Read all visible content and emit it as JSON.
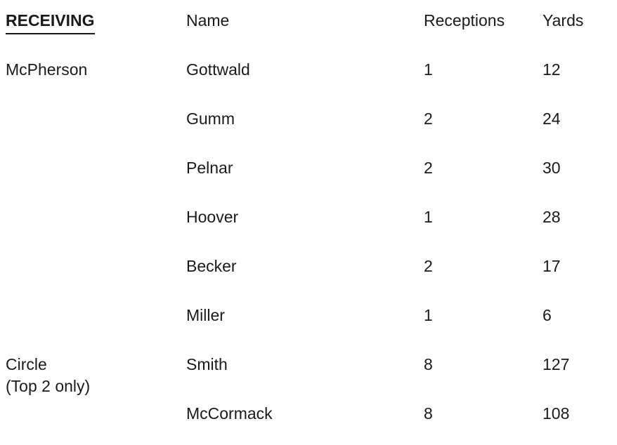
{
  "table": {
    "headers": {
      "section": "RECEIVING",
      "name": "Name",
      "receptions": "Receptions",
      "yards": "Yards"
    },
    "groups": [
      {
        "team": "McPherson",
        "team_note": "",
        "players": [
          {
            "name": "Gottwald",
            "receptions": "1",
            "yards": "12"
          },
          {
            "name": "Gumm",
            "receptions": "2",
            "yards": "24"
          },
          {
            "name": "Pelnar",
            "receptions": "2",
            "yards": "30"
          },
          {
            "name": "Hoover",
            "receptions": "1",
            "yards": "28"
          },
          {
            "name": "Becker",
            "receptions": "2",
            "yards": "17"
          },
          {
            "name": "Miller",
            "receptions": "1",
            "yards": "6"
          }
        ]
      },
      {
        "team": "Circle",
        "team_note": "(Top 2 only)",
        "players": [
          {
            "name": "Smith",
            "receptions": "8",
            "yards": "127"
          },
          {
            "name": "McCormack",
            "receptions": "8",
            "yards": "108"
          }
        ]
      }
    ],
    "colors": {
      "text": "#1a1a1a",
      "background": "#ffffff"
    }
  }
}
